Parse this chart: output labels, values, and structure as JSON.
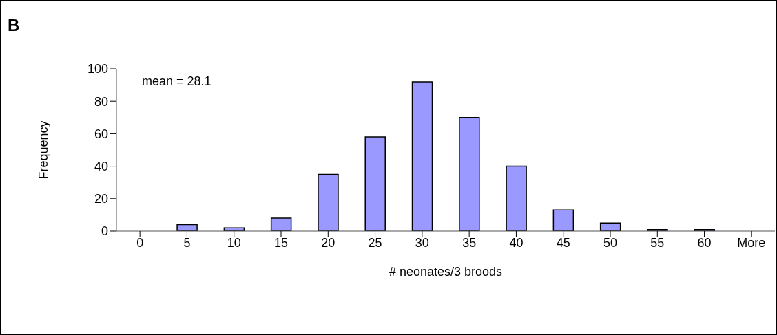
{
  "chart_data": {
    "type": "bar",
    "title": "B",
    "xlabel": "# neonates/3 broods",
    "ylabel": "Frequency",
    "categories": [
      "0",
      "5",
      "10",
      "15",
      "20",
      "25",
      "30",
      "35",
      "40",
      "45",
      "50",
      "55",
      "60",
      "More"
    ],
    "values": [
      0,
      4,
      2,
      8,
      35,
      58,
      92,
      70,
      40,
      13,
      5,
      1,
      1,
      0
    ],
    "color": "#9999ff",
    "ylim": [
      0,
      100
    ],
    "yticks": [
      0,
      20,
      40,
      60,
      80,
      100
    ],
    "grid": false,
    "legend": false,
    "annotations": [
      "mean = 28.1"
    ]
  }
}
